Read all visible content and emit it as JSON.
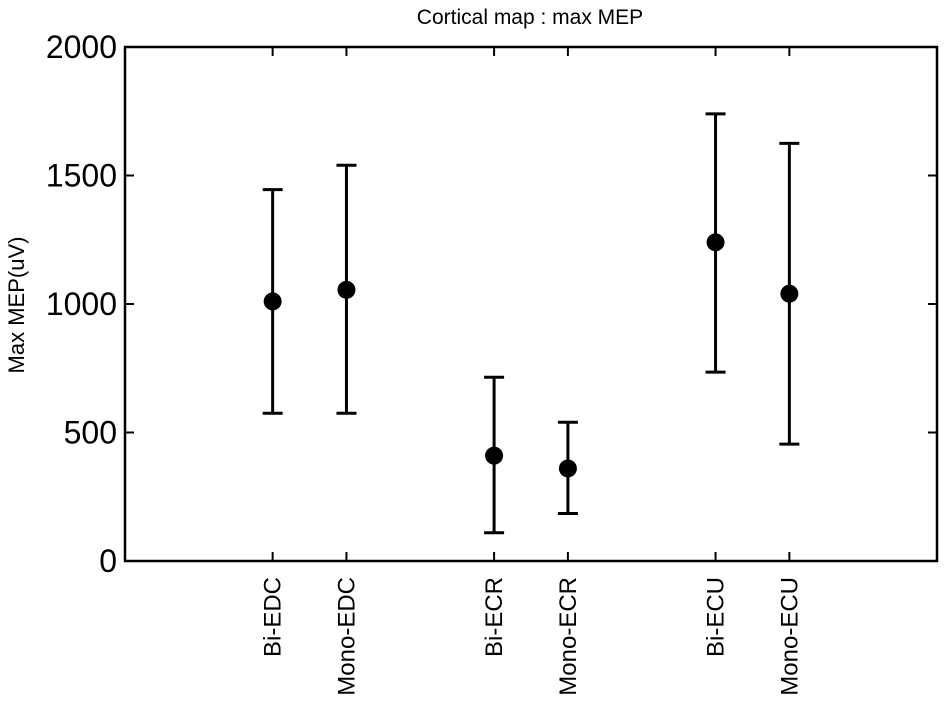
{
  "chart_data": {
    "type": "scatter",
    "title": "Cortical map : max MEP",
    "xlabel": "",
    "ylabel": "Max MEP(uV)",
    "ylim": [
      0,
      2000
    ],
    "yticks": [
      0,
      500,
      1000,
      1500,
      2000
    ],
    "grid": false,
    "legend": "none",
    "x": [
      1,
      2,
      4,
      5,
      7,
      8
    ],
    "xlim": [
      -1,
      10
    ],
    "categories": [
      "Bi-EDC",
      "Mono-EDC",
      "Bi-ECR",
      "Mono-ECR",
      "Bi-ECU",
      "Mono-ECU"
    ],
    "values": [
      1010,
      1055,
      410,
      360,
      1240,
      1040
    ],
    "error_low": [
      575,
      575,
      110,
      185,
      735,
      455
    ],
    "error_high": [
      1445,
      1540,
      715,
      540,
      1740,
      1625
    ],
    "colors": {
      "marker": "#000000",
      "axis": "#000000"
    }
  }
}
